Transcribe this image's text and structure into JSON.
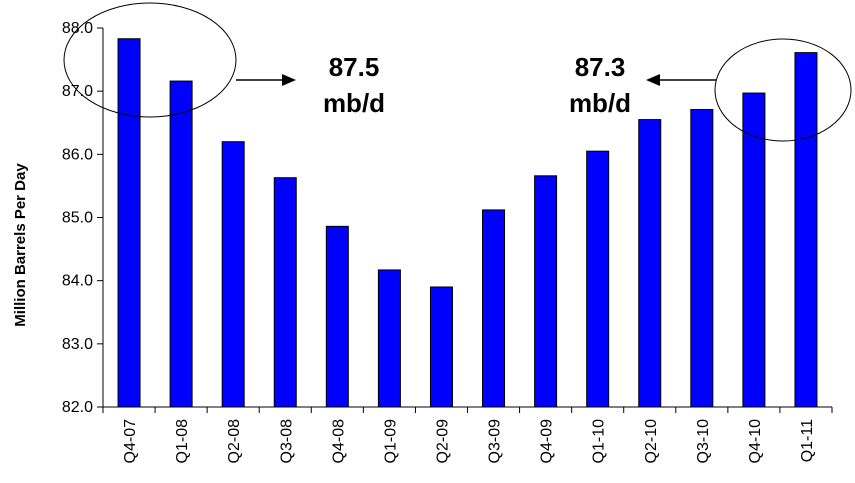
{
  "chart_data": {
    "type": "bar",
    "title": "",
    "xlabel": "",
    "ylabel": "Million Barrels Per Day",
    "ylim": [
      82.0,
      88.0
    ],
    "yticks": [
      "82.0",
      "83.0",
      "84.0",
      "85.0",
      "86.0",
      "87.0",
      "88.0"
    ],
    "categories": [
      "Q4-07",
      "Q1-08",
      "Q2-08",
      "Q3-08",
      "Q4-08",
      "Q1-09",
      "Q2-09",
      "Q3-09",
      "Q4-09",
      "Q1-10",
      "Q2-10",
      "Q3-10",
      "Q4-10",
      "Q1-11"
    ],
    "values": [
      87.83,
      87.16,
      86.2,
      85.63,
      84.86,
      84.17,
      83.9,
      85.12,
      85.66,
      86.05,
      86.55,
      86.71,
      86.97,
      87.61
    ],
    "bar_color": "#0000ff",
    "grid": false,
    "annotations": [
      {
        "value": "87.5",
        "unit": "mb/d"
      },
      {
        "value": "87.3",
        "unit": "mb/d"
      }
    ]
  }
}
